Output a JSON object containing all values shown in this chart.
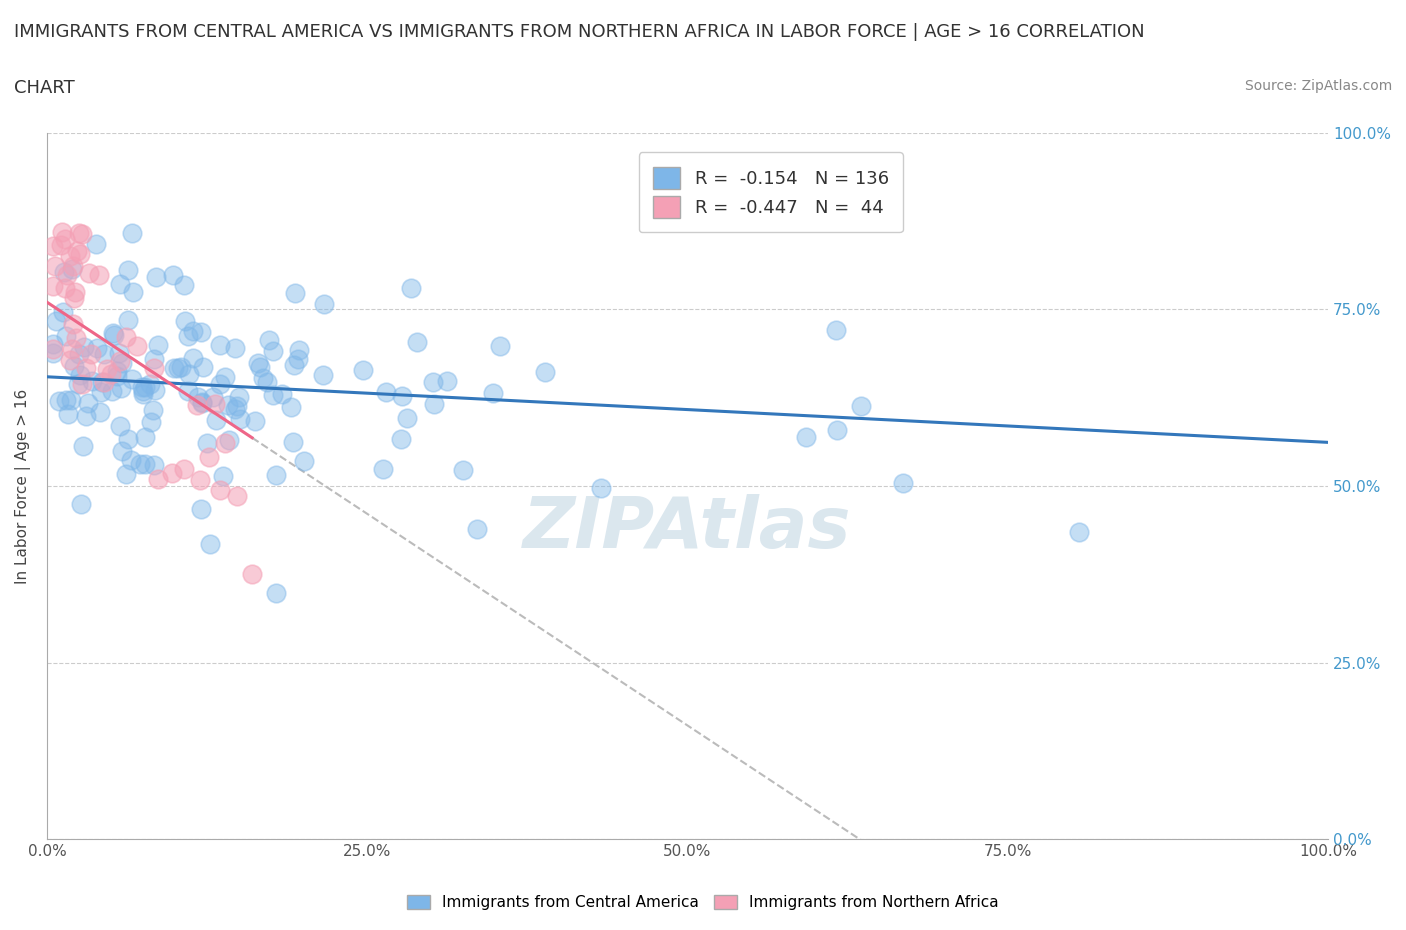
{
  "title_line1": "IMMIGRANTS FROM CENTRAL AMERICA VS IMMIGRANTS FROM NORTHERN AFRICA IN LABOR FORCE | AGE > 16 CORRELATION",
  "title_line2": "CHART",
  "source_text": "Source: ZipAtlas.com",
  "ylabel": "In Labor Force | Age > 16",
  "blue_label": "Immigrants from Central America",
  "pink_label": "Immigrants from Northern Africa",
  "blue_R": -0.154,
  "blue_N": 136,
  "pink_R": -0.447,
  "pink_N": 44,
  "blue_color": "#7EB6E8",
  "pink_color": "#F4A0B5",
  "blue_line_color": "#3377BB",
  "pink_line_color": "#EE6688",
  "background_color": "#ffffff",
  "grid_color": "#CCCCCC",
  "title_color": "#333333",
  "watermark_text": "ZIPAtlas",
  "watermark_color": "#CCDDE8",
  "xlim": [
    0.0,
    1.0
  ],
  "ylim": [
    0.0,
    1.0
  ],
  "yticks": [
    0.0,
    0.25,
    0.5,
    0.75,
    1.0
  ],
  "ytick_labels_right": [
    "0.0%",
    "25.0%",
    "50.0%",
    "75.0%",
    "100.0%"
  ],
  "xticks": [
    0.0,
    0.25,
    0.5,
    0.75,
    1.0
  ],
  "xtick_labels": [
    "0.0%",
    "25.0%",
    "50.0%",
    "75.0%",
    "100.0%"
  ]
}
